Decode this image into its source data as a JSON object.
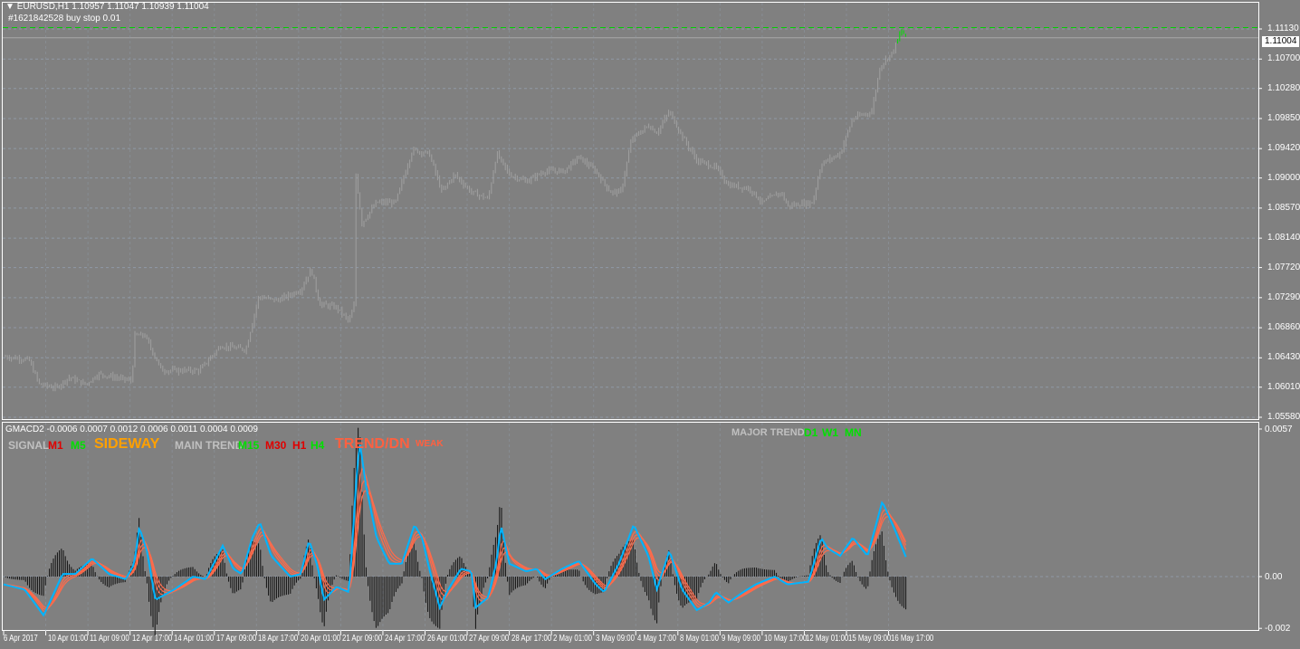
{
  "header": {
    "symbol_line": "EURUSD,H1  1.10957 1.11047 1.10939 1.11004",
    "order_line": "#1621842528 buy stop 0.01"
  },
  "colors": {
    "background": "#808080",
    "bars": "#a0a0a0",
    "last_bars": "#00e000",
    "grid": "#8f99a6",
    "buy_stop": "#00d000",
    "macd": "#00b4ff",
    "signal": "#ff6a4a",
    "histogram": "#101010"
  },
  "price_axis": {
    "ticks": [
      "1.11130",
      "1.10700",
      "1.10280",
      "1.09850",
      "1.09420",
      "1.09000",
      "1.08570",
      "1.08140",
      "1.07720",
      "1.07290",
      "1.06860",
      "1.06430",
      "1.06010",
      "1.05580"
    ],
    "current": "1.11004"
  },
  "indicator": {
    "title": "GMACD2 -0.0006 0.0007 0.0012 0.0006 0.0011 0.0004 0.0009",
    "signal_label": "SIGNAL",
    "m1": "M1",
    "m5": "M5",
    "sideway": "SIDEWAY",
    "main_trend_label": "MAIN TREND",
    "m15": "M15",
    "m30": "M30",
    "h1": "H1",
    "h4": "H4",
    "trend": "TREND/DN",
    "weak": "WEAK",
    "major_trend_label": "MAJOR TREND",
    "d1": "D1",
    "w1": "W1",
    "mn": "MN",
    "axis": [
      "0.0057",
      "0.00",
      "-0.002"
    ]
  },
  "time_axis": [
    "6 Apr 2017",
    "10 Apr 01:00",
    "11 Apr 09:00",
    "12 Apr 17:00",
    "14 Apr 01:00",
    "17 Apr 09:00",
    "18 Apr 17:00",
    "20 Apr 01:00",
    "21 Apr 09:00",
    "24 Apr 17:00",
    "26 Apr 01:00",
    "27 Apr 09:00",
    "28 Apr 17:00",
    "2 May 01:00",
    "3 May 09:00",
    "4 May 17:00",
    "8 May 01:00",
    "9 May 09:00",
    "10 May 17:00",
    "12 May 01:00",
    "15 May 09:00",
    "16 May 17:00"
  ],
  "chart_data": [
    {
      "type": "ohlc",
      "symbol": "EURUSD",
      "timeframe": "H1",
      "ylim": [
        1.0558,
        1.1113
      ],
      "buy_stop_level": 1.1115,
      "last_close": 1.11004,
      "closes_by_time_index": [
        [
          0,
          1.0645
        ],
        [
          0.6,
          1.064
        ],
        [
          0.85,
          1.0605
        ],
        [
          1.25,
          1.06
        ],
        [
          1.55,
          1.0615
        ],
        [
          1.95,
          1.0605
        ],
        [
          2.25,
          1.062
        ],
        [
          2.65,
          1.0615
        ],
        [
          3.05,
          1.061
        ],
        [
          3.1,
          1.0675
        ],
        [
          3.35,
          1.0675
        ],
        [
          3.75,
          1.0625
        ],
        [
          4.2,
          1.0625
        ],
        [
          4.65,
          1.0625
        ],
        [
          5.15,
          1.066
        ],
        [
          5.75,
          1.0655
        ],
        [
          6.05,
          1.073
        ],
        [
          6.5,
          1.0725
        ],
        [
          7.05,
          1.074
        ],
        [
          7.3,
          1.077
        ],
        [
          7.5,
          1.072
        ],
        [
          7.9,
          1.0715
        ],
        [
          8.2,
          1.0695
        ],
        [
          8.33,
          1.072
        ],
        [
          8.36,
          1.0905
        ],
        [
          8.5,
          1.0835
        ],
        [
          8.85,
          1.0865
        ],
        [
          9.3,
          1.0865
        ],
        [
          9.7,
          1.094
        ],
        [
          10.1,
          1.0935
        ],
        [
          10.4,
          1.088
        ],
        [
          10.7,
          1.0905
        ],
        [
          11.1,
          1.088
        ],
        [
          11.5,
          1.087
        ],
        [
          11.7,
          1.0935
        ],
        [
          12.0,
          1.0905
        ],
        [
          12.4,
          1.0895
        ],
        [
          12.85,
          1.091
        ],
        [
          13.3,
          1.091
        ],
        [
          13.65,
          1.093
        ],
        [
          14.05,
          1.091
        ],
        [
          14.4,
          1.088
        ],
        [
          14.65,
          1.088
        ],
        [
          14.9,
          1.0955
        ],
        [
          15.3,
          1.0975
        ],
        [
          15.5,
          1.0965
        ],
        [
          15.8,
          1.0995
        ],
        [
          16.1,
          1.096
        ],
        [
          16.45,
          1.0925
        ],
        [
          16.9,
          1.0915
        ],
        [
          17.2,
          1.089
        ],
        [
          17.7,
          1.0885
        ],
        [
          18.0,
          1.0865
        ],
        [
          18.45,
          1.088
        ],
        [
          18.6,
          1.086
        ],
        [
          19.2,
          1.0865
        ],
        [
          19.4,
          1.092
        ],
        [
          19.85,
          1.0935
        ],
        [
          20.15,
          1.0985
        ],
        [
          20.6,
          1.0995
        ],
        [
          20.8,
          1.106
        ],
        [
          21.1,
          1.108
        ],
        [
          21.3,
          1.111
        ],
        [
          21.45,
          1.11
        ]
      ]
    },
    {
      "type": "line",
      "name": "GMACD2",
      "ylim": [
        -0.002,
        0.0057
      ],
      "macd_by_time_index": [
        [
          0,
          -0.0003
        ],
        [
          0.5,
          -0.0005
        ],
        [
          0.95,
          -0.0015
        ],
        [
          1.4,
          0.0001
        ],
        [
          1.7,
          0.0001
        ],
        [
          2.1,
          0.0007
        ],
        [
          2.5,
          0.0001
        ],
        [
          2.9,
          -0.0001
        ],
        [
          3.1,
          0.0005
        ],
        [
          3.22,
          0.0019
        ],
        [
          3.4,
          0.001
        ],
        [
          3.6,
          -0.0009
        ],
        [
          4.05,
          -0.0005
        ],
        [
          4.5,
          0
        ],
        [
          4.8,
          -0.0001
        ],
        [
          5.2,
          0.0012
        ],
        [
          5.45,
          0.0003
        ],
        [
          5.65,
          0.0001
        ],
        [
          5.9,
          0.0015
        ],
        [
          6.08,
          0.0021
        ],
        [
          6.35,
          0.0008
        ],
        [
          6.8,
          0
        ],
        [
          7.05,
          0.0001
        ],
        [
          7.25,
          0.0014
        ],
        [
          7.45,
          0.0004
        ],
        [
          7.6,
          -0.0009
        ],
        [
          7.9,
          -0.0004
        ],
        [
          8.2,
          -0.0006
        ],
        [
          8.38,
          0.004
        ],
        [
          8.45,
          0.0052
        ],
        [
          8.6,
          0.0035
        ],
        [
          8.85,
          0.0015
        ],
        [
          9.15,
          0.0005
        ],
        [
          9.45,
          0.0005
        ],
        [
          9.75,
          0.002
        ],
        [
          9.93,
          0.0015
        ],
        [
          10.1,
          0.0003
        ],
        [
          10.35,
          -0.0012
        ],
        [
          10.55,
          -0.0005
        ],
        [
          10.85,
          0.0003
        ],
        [
          11.1,
          0.0002
        ],
        [
          11.2,
          -0.0012
        ],
        [
          11.5,
          -0.0008
        ],
        [
          11.7,
          0.0006
        ],
        [
          11.8,
          0.002
        ],
        [
          12.0,
          0.0005
        ],
        [
          12.4,
          0.0002
        ],
        [
          12.65,
          0.0003
        ],
        [
          12.85,
          -0.0001
        ],
        [
          13.25,
          0.0003
        ],
        [
          13.65,
          0.0006
        ],
        [
          14.05,
          -0.0003
        ],
        [
          14.25,
          -0.0006
        ],
        [
          14.6,
          0.0005
        ],
        [
          14.95,
          0.002
        ],
        [
          15.3,
          0.0008
        ],
        [
          15.5,
          -0.0005
        ],
        [
          15.8,
          0.001
        ],
        [
          16.1,
          -0.0005
        ],
        [
          16.45,
          -0.0013
        ],
        [
          16.75,
          -0.001
        ],
        [
          16.9,
          -0.0006
        ],
        [
          17.2,
          -0.001
        ],
        [
          17.55,
          -0.0006
        ],
        [
          17.85,
          -0.0003
        ],
        [
          18.3,
          0
        ],
        [
          18.6,
          -0.0003
        ],
        [
          19.1,
          -0.0002
        ],
        [
          19.4,
          0.0015
        ],
        [
          19.55,
          0.0011
        ],
        [
          19.85,
          0.0008
        ],
        [
          20.15,
          0.0015
        ],
        [
          20.5,
          0.0008
        ],
        [
          20.85,
          0.0029
        ],
        [
          21.15,
          0.0018
        ],
        [
          21.45,
          0.0006
        ]
      ]
    }
  ]
}
